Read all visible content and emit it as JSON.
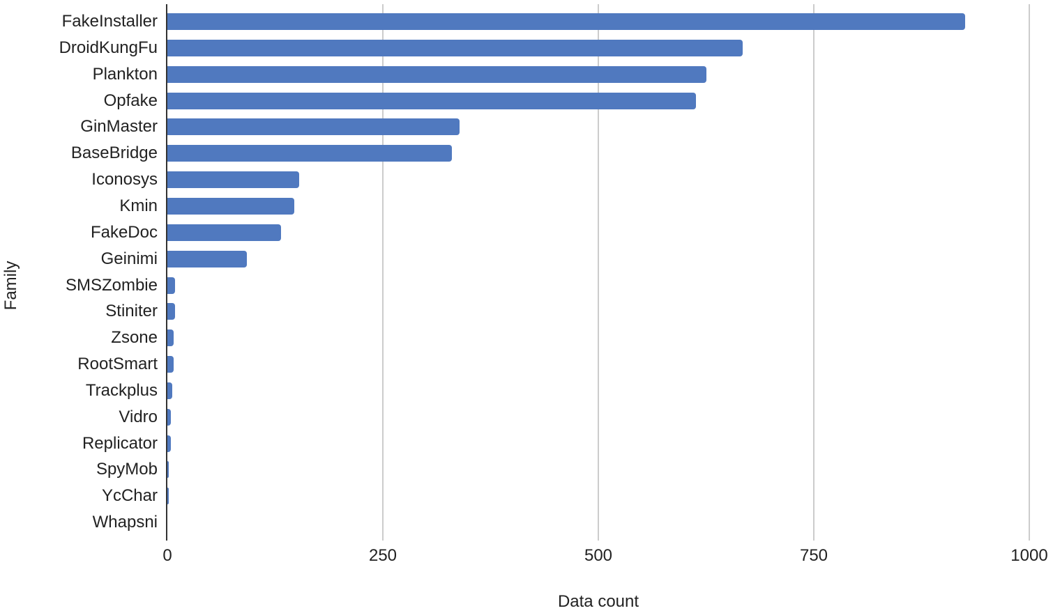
{
  "chart_data": {
    "type": "bar",
    "orientation": "horizontal",
    "title": "",
    "xlabel": "Data count",
    "ylabel": "Family",
    "xlim": [
      0,
      1000
    ],
    "xticks": [
      "0",
      "250",
      "500",
      "750",
      "1000"
    ],
    "grid": true,
    "legend": null,
    "color": "#5079bf",
    "categories": [
      "FakeInstaller",
      "DroidKungFu",
      "Plankton",
      "Opfake",
      "GinMaster",
      "BaseBridge",
      "Iconosys",
      "Kmin",
      "FakeDoc",
      "Geinimi",
      "SMSZombie",
      "Stiniter",
      "Zsone",
      "RootSmart",
      "Trackplus",
      "Vidro",
      "Replicator",
      "SpyMob",
      "YcChar",
      "Whapsni"
    ],
    "values": [
      925,
      667,
      625,
      613,
      339,
      330,
      153,
      147,
      132,
      92,
      9,
      9,
      7,
      7,
      6,
      4,
      4,
      2,
      2,
      0
    ]
  }
}
